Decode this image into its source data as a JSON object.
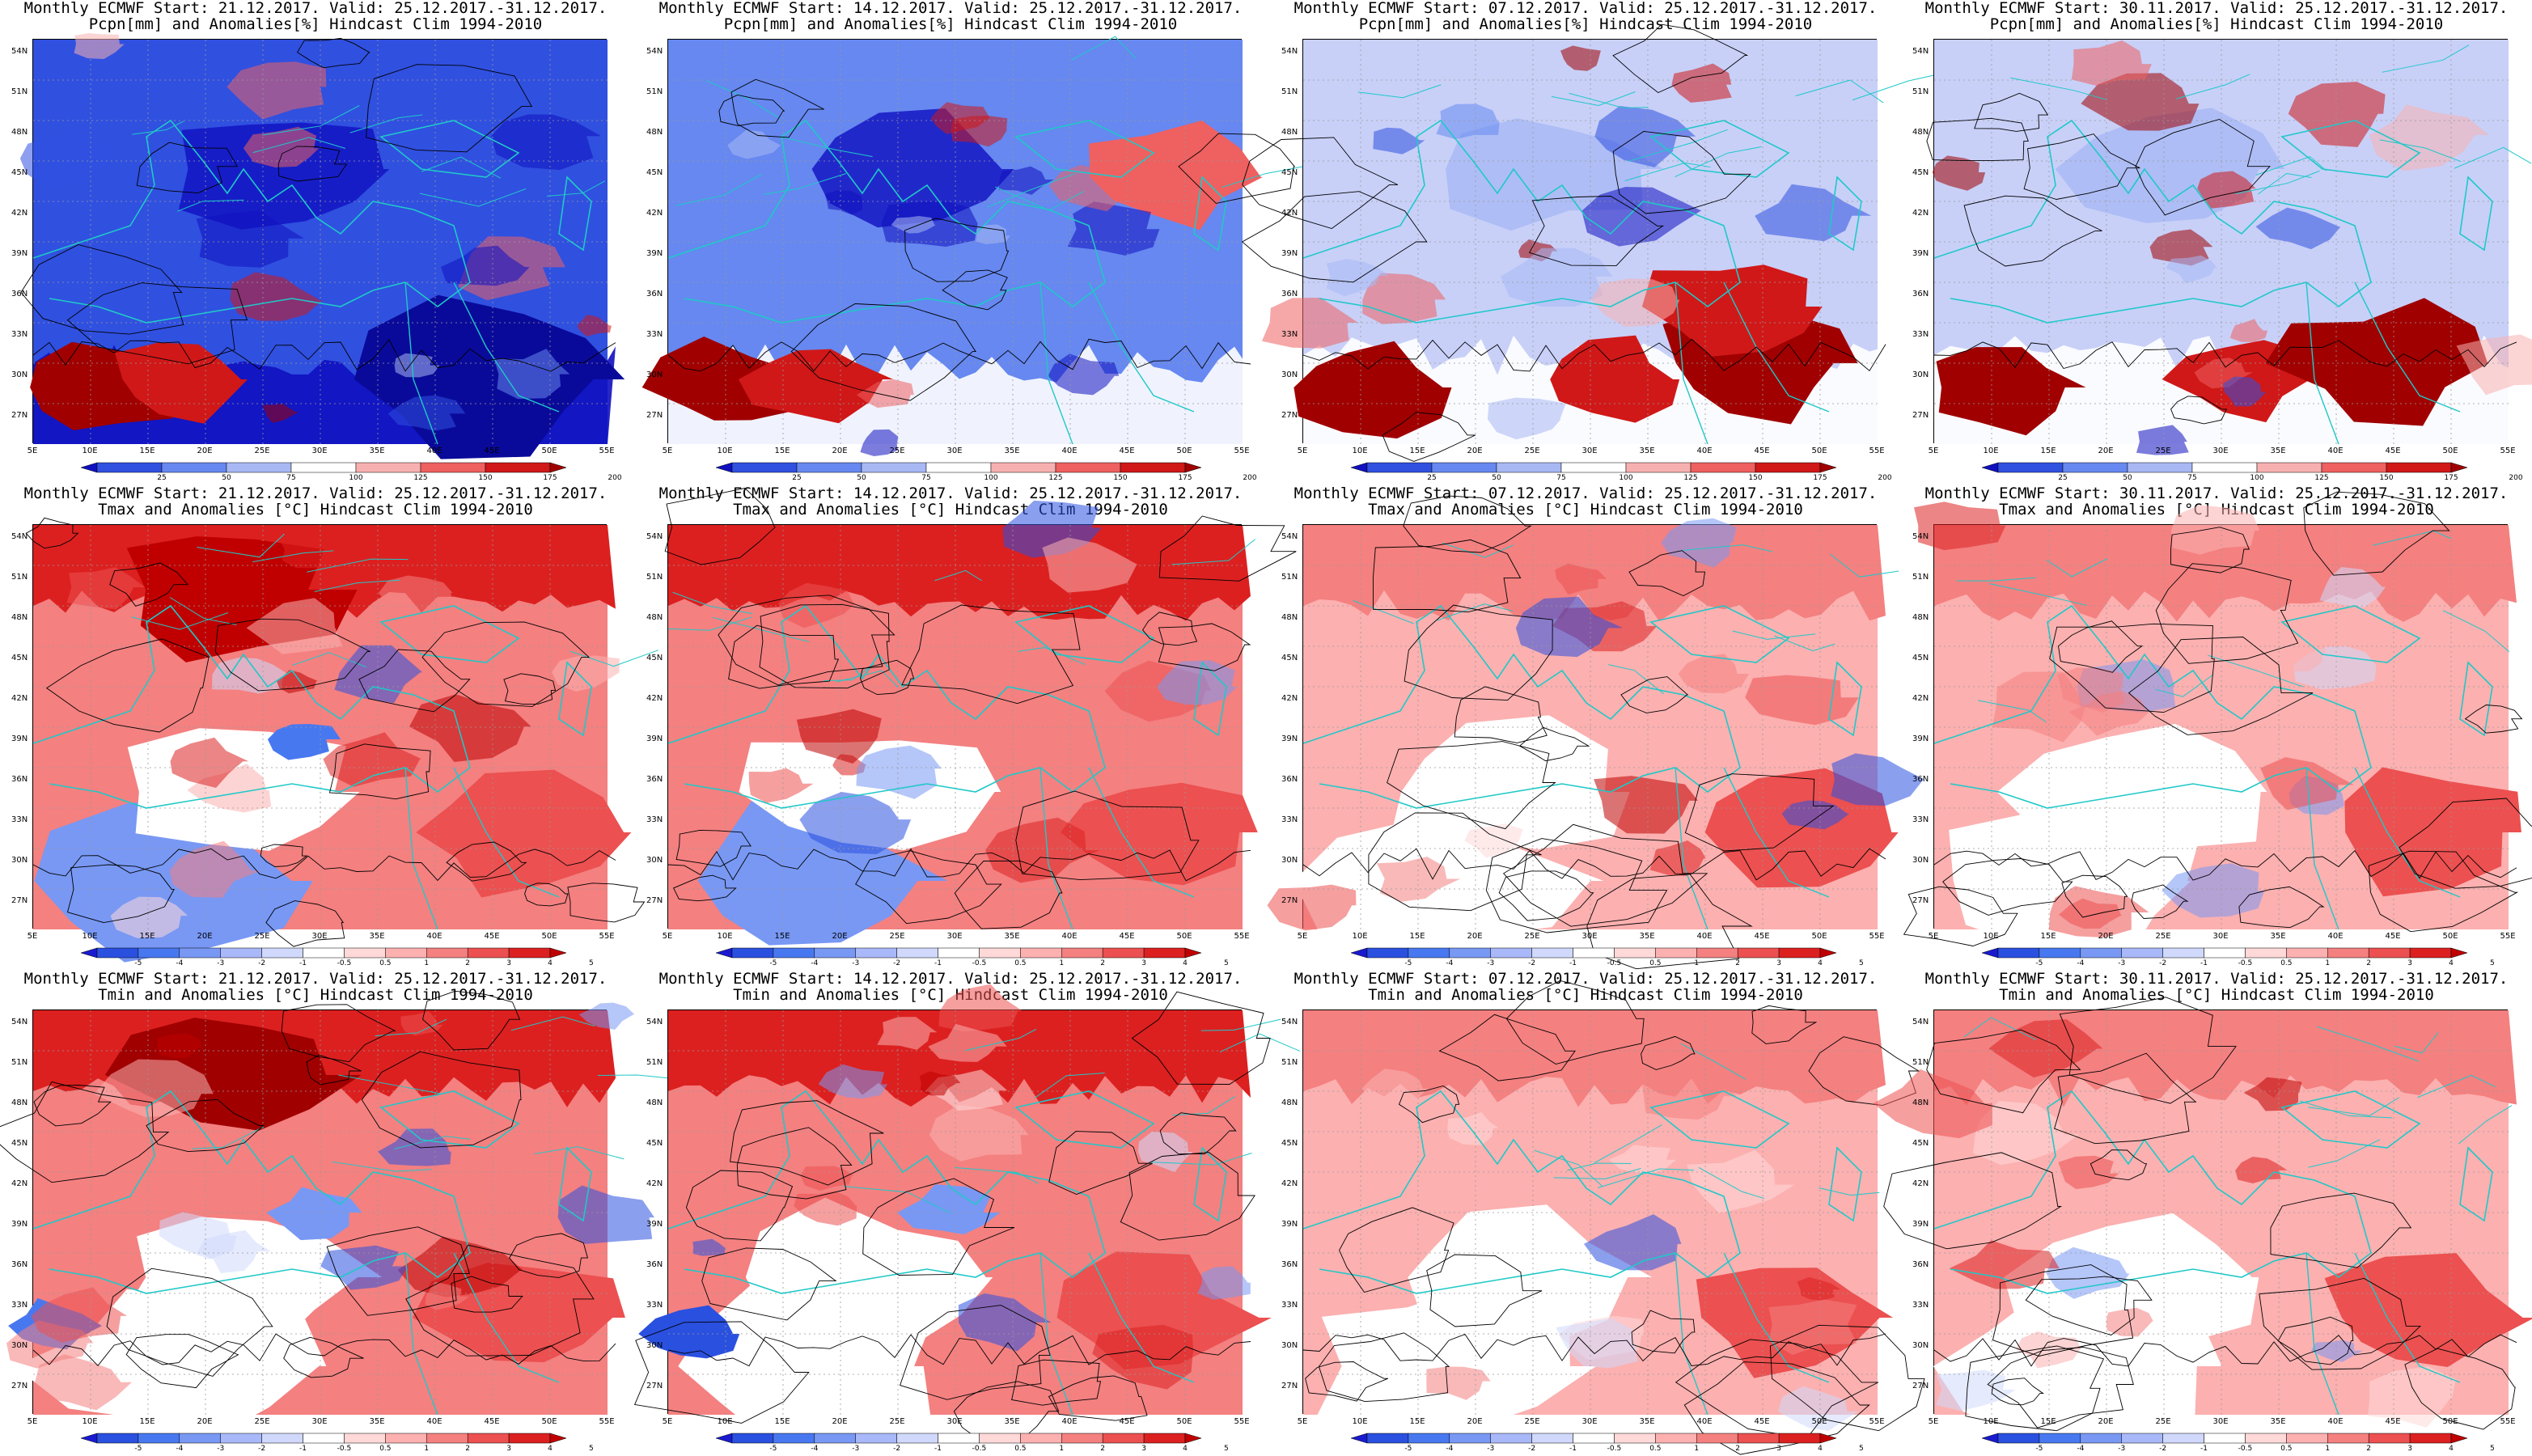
{
  "rows": [
    {
      "variable_line": "Pcpn[mm] and Anomalies[%] Hindcast Clim 1994-2010",
      "variable": "pcpn",
      "legend_labels": [
        "25",
        "50",
        "75",
        "100",
        "125",
        "150",
        "175",
        "200"
      ],
      "legend_colors": [
        "#1010c0",
        "#3050e0",
        "#6688f0",
        "#a8b8f4",
        "#ffffff",
        "#f7b0b0",
        "#ef6060",
        "#d01818",
        "#a00000"
      ]
    },
    {
      "variable_line": "Tmax and Anomalies [°C] Hindcast Clim 1994-2010",
      "variable": "temp",
      "legend_labels": [
        "-5",
        "-4",
        "-3",
        "-2",
        "-1",
        "-0.5",
        "0.5",
        "1",
        "2",
        "3",
        "4",
        "5"
      ],
      "legend_colors": [
        "#1a1ad0",
        "#2a50e0",
        "#4878f0",
        "#7898f4",
        "#a8b8f8",
        "#d0d8fc",
        "#ffffff",
        "#ffd8d8",
        "#fcb0b0",
        "#f48080",
        "#ec5050",
        "#dc2020",
        "#c00000"
      ]
    },
    {
      "variable_line": "Tmin and Anomalies [°C] Hindcast Clim 1994-2010",
      "variable": "temp",
      "legend_labels": [
        "-5",
        "-4",
        "-3",
        "-2",
        "-1",
        "-0.5",
        "0.5",
        "1",
        "2",
        "3",
        "4",
        "5"
      ],
      "legend_colors": [
        "#1a1ad0",
        "#2a50e0",
        "#4878f0",
        "#7898f4",
        "#a8b8f8",
        "#d0d8fc",
        "#ffffff",
        "#ffd8d8",
        "#fcb0b0",
        "#f48080",
        "#ec5050",
        "#dc2020",
        "#c00000"
      ]
    }
  ],
  "columns": [
    {
      "header": "Monthly ECMWF Start: 21.12.2017. Valid: 25.12.2017.-31.12.2017."
    },
    {
      "header": "Monthly ECMWF Start: 14.12.2017. Valid: 25.12.2017.-31.12.2017."
    },
    {
      "header": "Monthly ECMWF Start: 07.12.2017. Valid: 25.12.2017.-31.12.2017."
    },
    {
      "header": "Monthly ECMWF Start: 30.11.2017. Valid: 25.12.2017.-31.12.2017."
    }
  ],
  "map": {
    "lat_labels": [
      "54N",
      "51N",
      "48N",
      "45N",
      "42N",
      "39N",
      "36N",
      "33N",
      "30N",
      "27N"
    ],
    "lon_labels": [
      "5E",
      "10E",
      "15E",
      "20E",
      "25E",
      "30E",
      "35E",
      "40E",
      "45E",
      "50E",
      "55E"
    ],
    "coast_color": "#20c8c8",
    "contour_color": "#000000"
  }
}
